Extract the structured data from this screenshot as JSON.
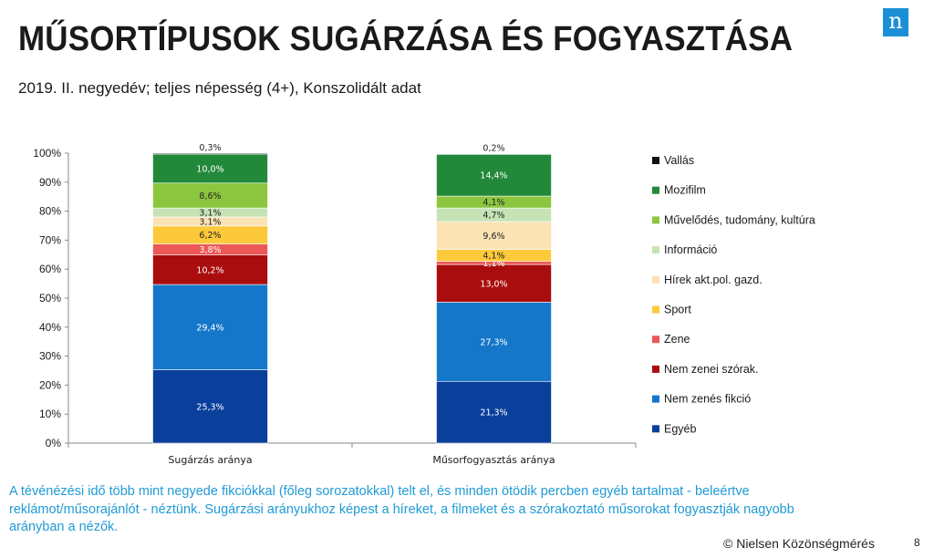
{
  "header": {
    "title": "MŰSORTÍPUSOK SUGÁRZÁSA ÉS FOGYASZTÁSA",
    "subtitle": "2019. II. negyedév; teljes népesség (4+), Konszolidált adat",
    "logo_text": "n",
    "logo_color": "#1a8fd6"
  },
  "chart_data": {
    "type": "bar",
    "stacked": true,
    "categories": [
      "Sugárzás aránya",
      "Műsorfogyasztás aránya"
    ],
    "ylim": [
      0,
      100
    ],
    "yticks": [
      "0%",
      "10%",
      "20%",
      "30%",
      "40%",
      "50%",
      "60%",
      "70%",
      "80%",
      "90%",
      "100%"
    ],
    "legend_position": "right",
    "series": [
      {
        "name": "Egyéb",
        "color": "#0a3f9c",
        "values": [
          25.3,
          21.3
        ],
        "labels": [
          "25,3%",
          "21,3%"
        ],
        "label_color": "#ffffff"
      },
      {
        "name": "Nem zenés fikció",
        "color": "#1577c9",
        "values": [
          29.4,
          27.3
        ],
        "labels": [
          "29,4%",
          "27,3%"
        ],
        "label_color": "#ffffff"
      },
      {
        "name": "Nem zenei szórak.",
        "color": "#aa0d0d",
        "values": [
          10.2,
          13.0
        ],
        "labels": [
          "10,2%",
          "13,0%"
        ],
        "label_color": "#ffffff"
      },
      {
        "name": "Zene",
        "color": "#ec5757",
        "values": [
          3.8,
          1.1
        ],
        "labels": [
          "3,8%",
          "1,1%"
        ],
        "label_color": "#ffffff"
      },
      {
        "name": "Sport",
        "color": "#fcc93a",
        "values": [
          6.2,
          4.1
        ],
        "labels": [
          "6,2%",
          "4,1%"
        ],
        "label_color": "#222222"
      },
      {
        "name": "Hírek akt.pol. gazd.",
        "color": "#fbe3b4",
        "values": [
          3.1,
          9.6
        ],
        "labels": [
          "3,1%",
          "9,6%"
        ],
        "label_color": "#222222"
      },
      {
        "name": "Információ",
        "color": "#c6e3b6",
        "values": [
          3.1,
          4.7
        ],
        "labels": [
          "3,1%",
          "4,7%"
        ],
        "label_color": "#222222"
      },
      {
        "name": "Művelődés, tudomány, kultúra",
        "color": "#8cc63f",
        "values": [
          8.6,
          4.1
        ],
        "labels": [
          "8,6%",
          "4,1%"
        ],
        "label_color": "#222222"
      },
      {
        "name": "Mozifilm",
        "color": "#23893a",
        "values": [
          10.0,
          14.4
        ],
        "labels": [
          "10,0%",
          "14,4%"
        ],
        "label_color": "#ffffff"
      },
      {
        "name": "Vallás",
        "color": "#111111",
        "values": [
          0.3,
          0.2
        ],
        "labels": [
          "0,3%",
          "0,2%"
        ],
        "label_color": "#222222"
      }
    ]
  },
  "note": "A tévénézési idő több mint negyede fikciókkal (főleg sorozatokkal) telt el, és minden ötödik percben egyéb tartalmat - beleértve reklámot/műsorajánlót - néztünk. Sugárzási arányukhoz képest a híreket, a filmeket és a szórakoztató műsorokat fogyasztják nagyobb arányban a nézők.",
  "footer": {
    "copyright": "© Nielsen Közönségmérés",
    "page_number": "8"
  }
}
